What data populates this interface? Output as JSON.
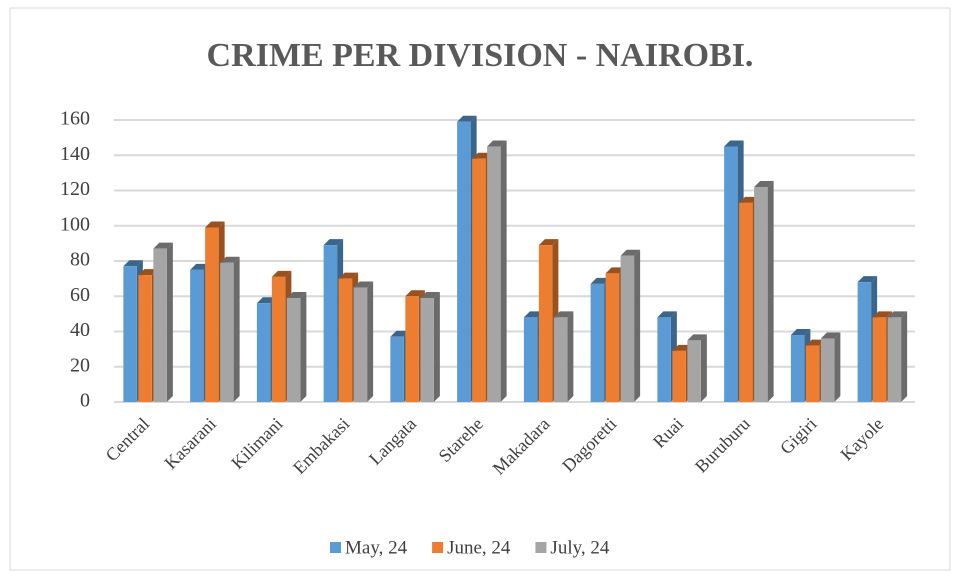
{
  "chart_data": {
    "type": "bar",
    "title": "CRIME PER DIVISION - NAIROBI.",
    "categories": [
      "Central",
      "Kasarani",
      "Kilimani",
      "Embakasi",
      "Langata",
      "Starehe",
      "Makadara",
      "Dagoretti",
      "Ruai",
      "Buruburu",
      "Gigiri",
      "Kayole"
    ],
    "series": [
      {
        "name": "May, 24",
        "color": "#5b9bd5",
        "values": [
          77,
          75,
          56,
          89,
          37,
          159,
          48,
          67,
          48,
          145,
          38,
          68
        ]
      },
      {
        "name": "June, 24",
        "color": "#ed7d31",
        "values": [
          72,
          99,
          71,
          70,
          60,
          138,
          89,
          73,
          29,
          113,
          32,
          48
        ]
      },
      {
        "name": "July, 24",
        "color": "#a5a5a5",
        "values": [
          87,
          79,
          59,
          65,
          59,
          145,
          48,
          83,
          35,
          122,
          36,
          48
        ]
      }
    ],
    "ylim": [
      0,
      160
    ],
    "yticks": [
      0,
      20,
      40,
      60,
      80,
      100,
      120,
      140,
      160
    ],
    "grid": true,
    "legend": "bottom"
  }
}
